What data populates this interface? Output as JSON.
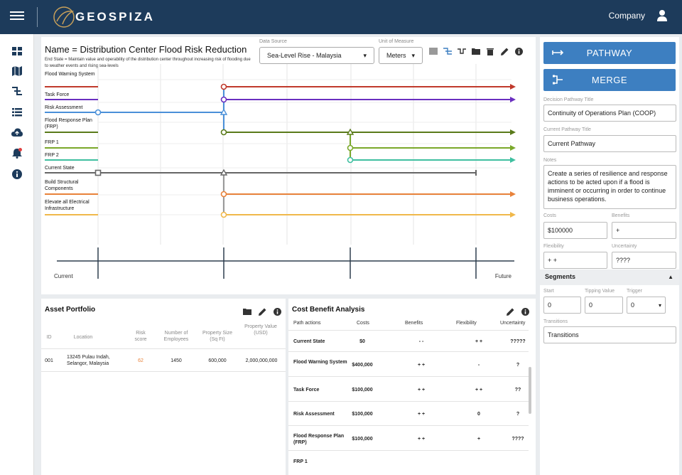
{
  "header": {
    "logo_text": "GEOSPIZA",
    "company_label": "Company"
  },
  "sidebar": {
    "icons": [
      "dashboard-icon",
      "map-icon",
      "pathway-icon",
      "list-icon",
      "cloud-upload-icon",
      "notification-bell-icon",
      "info-icon"
    ]
  },
  "pathway": {
    "title": "Name = Distribution Center Flood Risk Reduction",
    "end_state": "End State = Maintain value and operability of the distribution center throughout increasing risk of flooding due to weather events and rising sea-levels",
    "data_source_label": "Data Source",
    "data_source_value": "Sea-Level Rise - Malaysia",
    "unit_label": "Unit of Measure",
    "unit_value": "Meters",
    "timeline_start": "Current",
    "timeline_end": "Future",
    "lines": [
      {
        "label": "Flood Warning System",
        "color": "#c0392b"
      },
      {
        "label": "Task Force",
        "color": "#6a2fc0"
      },
      {
        "label": "Risk Assessment",
        "color": "#4a90d9"
      },
      {
        "label": "Flood Response Plan (FRP)",
        "color": "#5a7a1a"
      },
      {
        "label": "FRP 1",
        "color": "#7aa82a"
      },
      {
        "label": "FRP 2",
        "color": "#3fbfa0"
      },
      {
        "label": "Current State",
        "color": "#666666"
      },
      {
        "label": "Build Structural Components",
        "color": "#e8823a"
      },
      {
        "label": "Elevate all Electrical Infrastructure",
        "color": "#f0b84a"
      }
    ]
  },
  "right_panel": {
    "pathway_button": "PATHWAY",
    "merge_button": "MERGE",
    "decision_title_label": "Decision Pathway Title",
    "decision_title_value": "Continuity of Operations Plan (COOP)",
    "current_title_label": "Current Pathway Title",
    "current_title_value": "Current Pathway",
    "notes_label": "Notes",
    "notes_value": "Create a series of resilience and response actions to be acted upon if a flood is imminent or occurring in order to continue business operations.",
    "costs_label": "Costs",
    "costs_value": "$100000",
    "benefits_label": "Benefits",
    "benefits_value": "+",
    "flexibility_label": "Flexibility",
    "flexibility_value": "+ +",
    "uncertainty_label": "Uncertainty",
    "uncertainty_value": "????",
    "segments_label": "Segments",
    "start_label": "Start",
    "start_value": "0",
    "tipping_label": "Tipping Value",
    "tipping_value": "0",
    "trigger_label": "Trigger",
    "trigger_value": "0",
    "transitions_label": "Transitions",
    "transitions_value": "Transitions"
  },
  "asset_portfolio": {
    "title": "Asset Portfolio",
    "headers": [
      "ID",
      "Location",
      "Risk score",
      "Number of Employees",
      "Property Size (Sq Ft)",
      "Property Value (USD)"
    ],
    "row": {
      "id": "001",
      "location": "13245 Pulau Indah, Selangor, Malaysia",
      "risk": "62",
      "employees": "1450",
      "size": "600,000",
      "value": "2,000,000,000"
    }
  },
  "cost_benefit": {
    "title": "Cost Benefit Analysis",
    "headers": [
      "Path actions",
      "Costs",
      "Benefits",
      "Flexibility",
      "Uncertainty"
    ],
    "rows": [
      {
        "name": "Current State",
        "costs": "$0",
        "benefits": "- -",
        "flex": "+ +",
        "unc": "?????"
      },
      {
        "name": "Flood Warning System",
        "costs": "$400,000",
        "benefits": "+ +",
        "flex": "-",
        "unc": "?"
      },
      {
        "name": "Task Force",
        "costs": "$100,000",
        "benefits": "+ +",
        "flex": "+ +",
        "unc": "??"
      },
      {
        "name": "Risk Assessment",
        "costs": "$100,000",
        "benefits": "+ +",
        "flex": "0",
        "unc": "?"
      },
      {
        "name": "Flood Response Plan (FRP)",
        "costs": "$100,000",
        "benefits": "+ +",
        "flex": "+",
        "unc": "????"
      },
      {
        "name": "FRP 1",
        "costs": "",
        "benefits": "",
        "flex": "",
        "unc": ""
      }
    ]
  }
}
